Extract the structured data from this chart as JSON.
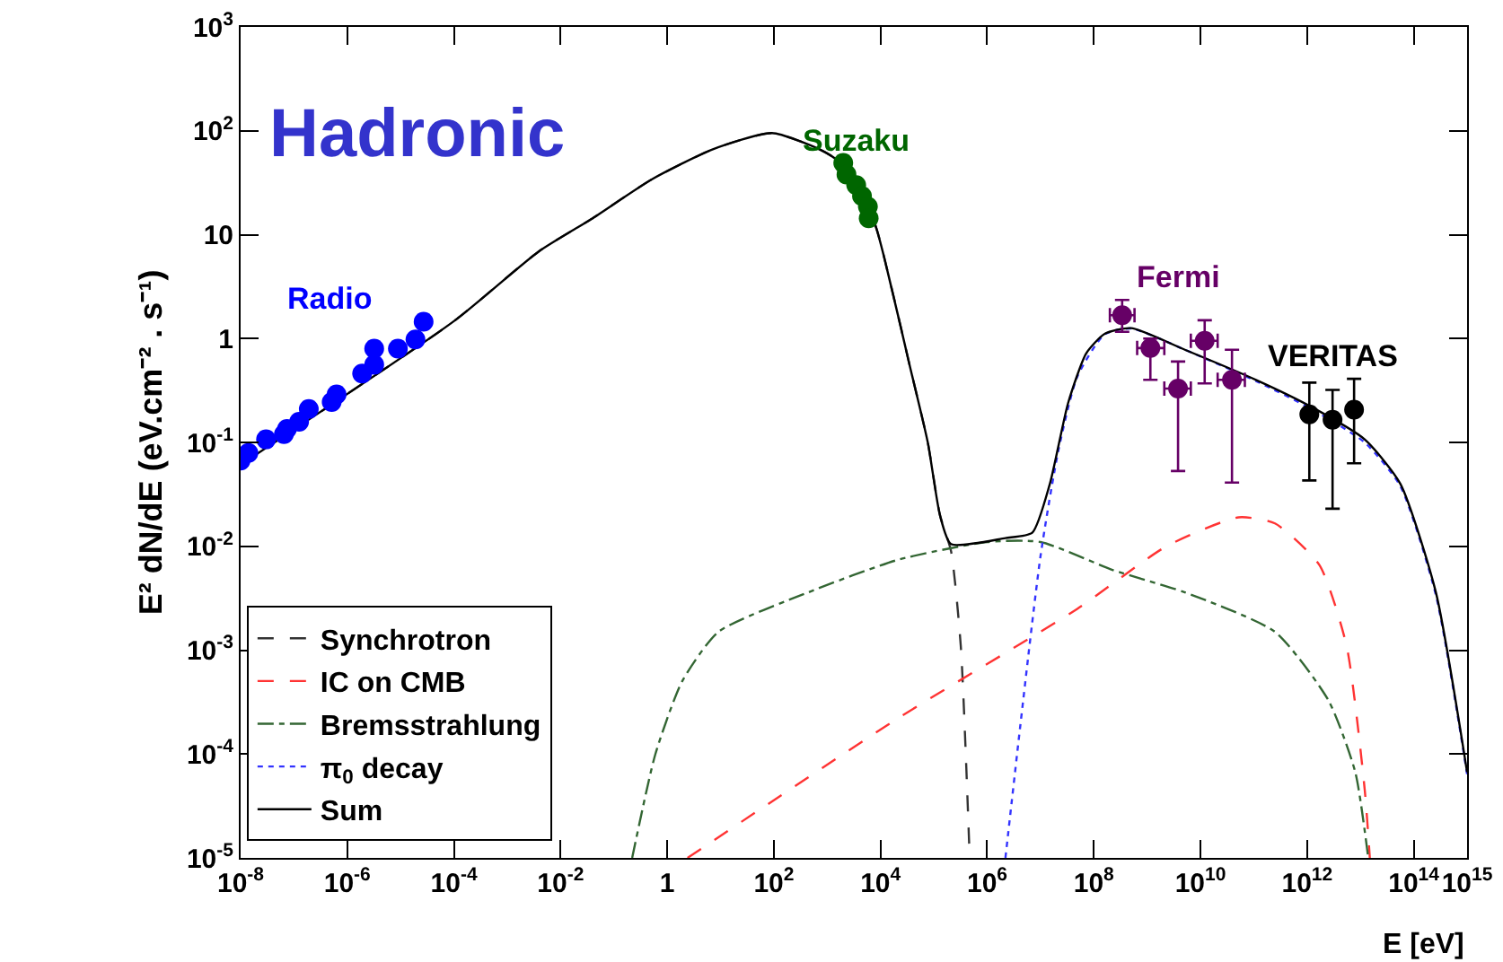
{
  "chart_data": {
    "type": "line",
    "xlabel": "E [eV]",
    "ylabel": "E² dN/dE (eV.cm⁻² . s⁻¹)",
    "log": "xy",
    "grid": false,
    "legend": "bottom left",
    "annotations": [
      "Hadronic"
    ],
    "xlim": [
      1e-08,
      1000000000000000.0
    ],
    "ylim": [
      1e-05,
      1000
    ],
    "xticks": [
      {
        "value": 1e-08,
        "label": "10$^{-8}$"
      },
      {
        "value": 1e-06,
        "label": "10$^{-6}$"
      },
      {
        "value": 0.0001,
        "label": "10$^{-4}$"
      },
      {
        "value": 0.01,
        "label": "10$^{-2}$"
      },
      1,
      {
        "value": 100,
        "label": "10$^{2}$"
      },
      {
        "value": 10000.0,
        "label": "10$^{4}$"
      },
      {
        "value": 1000000.0,
        "label": "10$^{6}$"
      },
      {
        "value": 100000000.0,
        "label": "10$^{8}$"
      },
      {
        "value": 10000000000.0,
        "label": "10$^{10}$"
      },
      {
        "value": 1000000000000.0,
        "label": "10$^{12}$"
      },
      {
        "value": 100000000000000.0,
        "label": "10$^{14}$"
      },
      {
        "value": 1000000000000000.0,
        "label": "10$^{15}$"
      }
    ],
    "yticks": [
      {
        "value": 1e-05,
        "label": "10$^{-5}$"
      },
      {
        "value": 0.0001,
        "label": "10$^{-4}$"
      },
      {
        "value": 0.001,
        "label": "10$^{-3}$"
      },
      {
        "value": 0.01,
        "label": "10$^{-2}$"
      },
      {
        "value": 0.1,
        "label": "10$^{-1}$"
      },
      1,
      10,
      {
        "value": 100,
        "label": "10$^{2}$"
      },
      {
        "value": 1000,
        "label": "10$^{3}$"
      }
    ],
    "series": [
      {
        "name": "Synchrotron",
        "color": "#333333",
        "line_style": "dashed",
        "x": [
          1e-08,
          0.0001,
          0.0039,
          0.04,
          0.51,
          7,
          92,
          730,
          1600,
          7500,
          16000,
          35000,
          77000,
          130000,
          210000,
          320000,
          470000
        ],
        "values": [
          0.061,
          1.47,
          6.9,
          14.4,
          34,
          66,
          95,
          66,
          51,
          13.5,
          3.1,
          0.56,
          0.1,
          0.02,
          0.009,
          0.0011,
          1e-05
        ]
      },
      {
        "name": "IC on CMB",
        "color": "#ff3333",
        "line_style": "dashed",
        "x": [
          2.4,
          21000,
          49000000.0,
          2300000000.0,
          52000000000.0,
          250000000000.0,
          1700000000000.0,
          5500000000000.0,
          12000000000000.0,
          15000000000000.0
        ],
        "values": [
          1e-05,
          0.00022,
          0.0025,
          0.01,
          0.019,
          0.0166,
          0.0066,
          0.0011,
          4.6e-05,
          1e-05
        ]
      },
      {
        "name": "Bremsstrahlung",
        "color": "#336633",
        "line_style": "dashdot",
        "x": [
          0.22,
          0.6,
          1.9,
          9.1,
          440,
          21000,
          1000000.0,
          10000000.0,
          230000000.0,
          5100000000.0,
          250000000000.0,
          2500000000000.0,
          8000000000000.0,
          14000000000000.0
        ],
        "values": [
          1e-05,
          0.0001,
          0.0005,
          0.0015,
          0.0036,
          0.0074,
          0.011,
          0.011,
          0.0059,
          0.0036,
          0.0015,
          0.00033,
          6.7e-05,
          1e-05
        ]
      },
      {
        "name": "π$_{0}$ decay",
        "color": "#3333ff",
        "line_style": "dotted",
        "x": [
          2200000.0,
          10000000.0,
          22000000.0,
          49000000.0,
          160000000.0,
          500000000.0,
          5100000000.0,
          110000000000.0,
          1200000000000.0,
          12000000000000.0,
          56000000000000.0,
          260000000000000.0,
          1000000000000000.0
        ],
        "values": [
          1e-05,
          0.008,
          0.087,
          0.43,
          1.1,
          1.25,
          0.78,
          0.39,
          0.21,
          0.1,
          0.038,
          0.0034,
          6.4e-05
        ]
      },
      {
        "name": "Sum",
        "color": "#000000",
        "line_style": "solid",
        "x": [
          1e-08,
          0.0001,
          0.0039,
          0.04,
          0.51,
          7,
          92,
          730,
          1600,
          7500,
          16000,
          35000,
          77000,
          130000,
          210000,
          2200000.0,
          7000000.0,
          15000000.0,
          33000000.0,
          72000000.0,
          160000000.0,
          500000000.0,
          5100000000.0,
          110000000000.0,
          1200000000000.0,
          12000000000000.0,
          56000000000000.0,
          260000000000000.0,
          1000000000000000.0
        ],
        "values": [
          0.061,
          1.47,
          6.9,
          14.4,
          34,
          66,
          95,
          66,
          51,
          13.5,
          3.1,
          0.56,
          0.1,
          0.02,
          0.0105,
          0.012,
          0.0135,
          0.04,
          0.24,
          0.72,
          1.11,
          1.26,
          0.78,
          0.4,
          0.22,
          0.107,
          0.04,
          0.0036,
          6.7e-05
        ]
      },
      {
        "name": "Radio",
        "type": "scatter",
        "marker": "circle",
        "color": "#0000ff",
        "x": [
          1e-08,
          1.4e-08,
          3e-08,
          6.5e-08,
          7.4e-08,
          1.25e-07,
          1.9e-07,
          5.1e-07,
          6.3e-07,
          1.9e-06,
          3.2e-06,
          3.2e-06,
          8.9e-06,
          1.9e-05,
          2.7e-05
        ],
        "values": [
          0.067,
          0.079,
          0.107,
          0.12,
          0.135,
          0.158,
          0.21,
          0.245,
          0.29,
          0.46,
          0.56,
          0.8,
          0.8,
          0.98,
          1.45
        ]
      },
      {
        "name": "Suzaku",
        "type": "scatter",
        "marker": "circle",
        "color": "#006600",
        "x": [
          2000,
          2300,
          3500,
          4500,
          5800,
          6000
        ],
        "values": [
          49,
          38,
          30,
          23.5,
          18.6,
          14.4
        ]
      },
      {
        "name": "Fermi",
        "type": "scatter",
        "marker": "circle",
        "color": "#660066",
        "x": [
          340000000.0,
          1150000000.0,
          3800000000.0,
          12000000000.0,
          39000000000.0
        ],
        "values": [
          1.68,
          0.81,
          0.33,
          0.95,
          0.4
        ],
        "errors": [
          [
            1.16,
            2.35
          ],
          [
            0.4,
            1.0
          ],
          [
            0.053,
            0.6
          ],
          [
            0.37,
            1.5
          ],
          [
            0.041,
            0.78
          ]
        ],
        "xerrors": [
          [
            200000000.0,
            580000000.0
          ],
          [
            650000000.0,
            2100000000.0
          ],
          [
            2100000000.0,
            6600000000.0
          ],
          [
            6600000000.0,
            21000000000.0
          ],
          [
            21000000000.0,
            68000000000.0
          ]
        ]
      },
      {
        "name": "VERITAS",
        "type": "scatter",
        "marker": "circle",
        "color": "#000000",
        "x": [
          1100000000000.0,
          3000000000000.0,
          7600000000000.0
        ],
        "values": [
          0.186,
          0.165,
          0.207
        ],
        "errors": [
          [
            0.043,
            0.376
          ],
          [
            0.023,
            0.32
          ],
          [
            0.063,
            0.41
          ]
        ]
      }
    ]
  }
}
